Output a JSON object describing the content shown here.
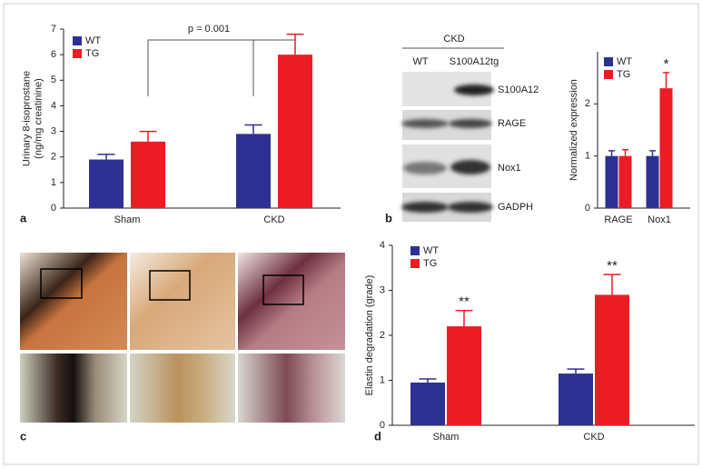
{
  "chart_data": [
    {
      "type": "bar",
      "panel": "a",
      "ylabel": [
        "Urinary 8-isoprostane",
        "(ng/mg creatinine)"
      ],
      "annotation": "p = 0.001",
      "categories": [
        "Sham",
        "CKD"
      ],
      "series": [
        {
          "name": "WT",
          "color": "#2e3192",
          "values": [
            1.9,
            2.9
          ],
          "errors": [
            0.2,
            0.35
          ]
        },
        {
          "name": "TG",
          "color": "#ed1c24",
          "values": [
            2.6,
            6.0
          ],
          "errors": [
            0.4,
            0.8
          ]
        }
      ],
      "ylim": [
        0,
        7
      ],
      "yticks": [
        0,
        1,
        2,
        3,
        4,
        5,
        6,
        7
      ]
    },
    {
      "type": "bar",
      "panel": "b",
      "ylabel": [
        "Normalized expression"
      ],
      "annotations": [
        "*"
      ],
      "categories": [
        "RAGE",
        "Nox1"
      ],
      "series": [
        {
          "name": "WT",
          "color": "#2e3192",
          "values": [
            1,
            1
          ],
          "errors": [
            0.1,
            0.1
          ]
        },
        {
          "name": "TG",
          "color": "#ed1c24",
          "values": [
            1,
            2.3
          ],
          "errors": [
            0.12,
            0.3
          ]
        }
      ],
      "ylim": [
        0,
        3
      ],
      "yticks": [
        0,
        1,
        2
      ]
    },
    {
      "type": "bar",
      "panel": "d",
      "ylabel": [
        "Elastin degradation (grade)"
      ],
      "annotations": [
        "**",
        "**"
      ],
      "categories": [
        "Sham",
        "CKD"
      ],
      "series": [
        {
          "name": "WT",
          "color": "#2e3192",
          "values": [
            0.95,
            1.15
          ],
          "errors": [
            0.08,
            0.1
          ]
        },
        {
          "name": "TG",
          "color": "#ed1c24",
          "values": [
            2.2,
            2.9
          ],
          "errors": [
            0.35,
            0.45
          ]
        }
      ],
      "ylim": [
        0,
        4
      ],
      "yticks": [
        0,
        1,
        2,
        3,
        4
      ]
    }
  ],
  "blot": {
    "group": "CKD",
    "lanes": [
      "WT",
      "S100A12tg"
    ],
    "rows": [
      "S100A12",
      "RAGE",
      "Nox1",
      "GADPH"
    ]
  },
  "histology": {
    "panel": "c"
  }
}
